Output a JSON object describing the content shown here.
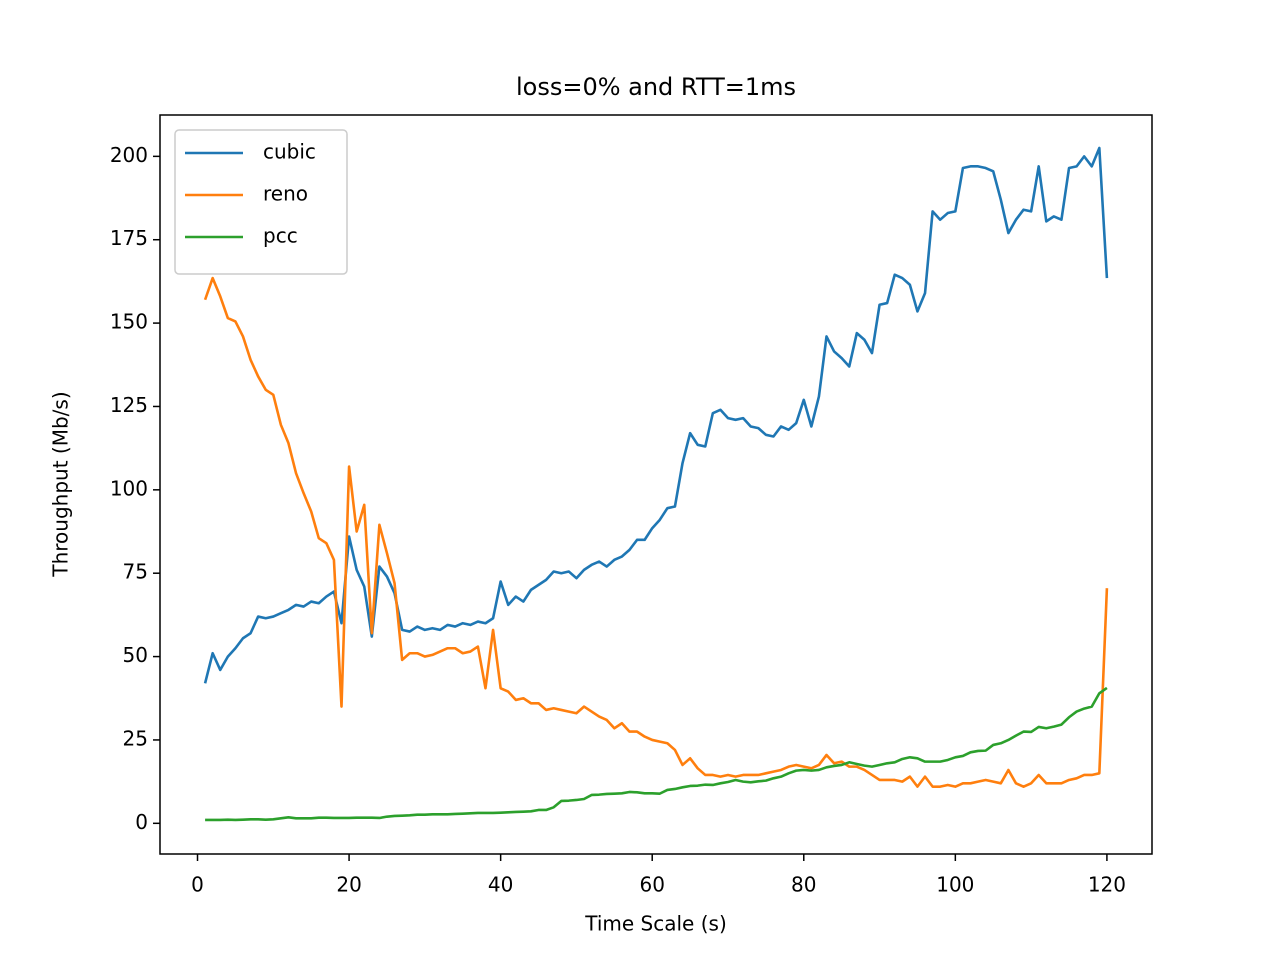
{
  "chart_data": {
    "type": "line",
    "title": "loss=0% and RTT=1ms",
    "xlabel": "Time Scale (s)",
    "ylabel": "Throughput (Mb/s)",
    "x": [
      1,
      2,
      3,
      4,
      5,
      6,
      7,
      8,
      9,
      10,
      11,
      12,
      13,
      14,
      15,
      16,
      17,
      18,
      19,
      20,
      21,
      22,
      23,
      24,
      25,
      26,
      27,
      28,
      29,
      30,
      31,
      32,
      33,
      34,
      35,
      36,
      37,
      38,
      39,
      40,
      41,
      42,
      43,
      44,
      45,
      46,
      47,
      48,
      49,
      50,
      51,
      52,
      53,
      54,
      55,
      56,
      57,
      58,
      59,
      60,
      61,
      62,
      63,
      64,
      65,
      66,
      67,
      68,
      69,
      70,
      71,
      72,
      73,
      74,
      75,
      76,
      77,
      78,
      79,
      80,
      81,
      82,
      83,
      84,
      85,
      86,
      87,
      88,
      89,
      90,
      91,
      92,
      93,
      94,
      95,
      96,
      97,
      98,
      99,
      100,
      101,
      102,
      103,
      104,
      105,
      106,
      107,
      108,
      109,
      110,
      111,
      112,
      113,
      114,
      115,
      116,
      117,
      118,
      119,
      120
    ],
    "series": [
      {
        "name": "cubic",
        "color": "#1f77b4",
        "values": [
          42,
          51,
          46,
          50,
          52.5,
          55.5,
          57,
          62,
          61.5,
          62,
          63,
          64,
          65.5,
          65,
          66.5,
          66,
          68,
          69.5,
          60,
          86,
          76,
          71,
          56,
          77,
          74,
          69,
          58,
          57.5,
          59,
          58,
          58.5,
          58,
          59.5,
          59,
          60,
          59.5,
          60.5,
          60,
          61.5,
          72.5,
          65.5,
          68,
          66.5,
          70,
          71.5,
          73,
          75.5,
          75,
          75.5,
          73.5,
          76,
          77.5,
          78.5,
          77,
          79,
          80,
          82,
          85,
          85,
          88.5,
          91,
          94.5,
          95,
          108,
          117,
          113.5,
          113,
          123,
          124,
          121.5,
          121,
          121.5,
          119,
          118.5,
          116.5,
          116,
          119,
          118,
          120,
          127,
          119,
          128,
          146,
          141.5,
          139.5,
          137,
          147,
          145,
          141,
          155.5,
          156,
          164.5,
          163.5,
          161.5,
          153.5,
          159,
          183.5,
          181,
          183,
          183.5,
          196.5,
          197,
          197,
          196.5,
          195.5,
          187,
          177,
          181,
          184,
          183.5,
          197,
          180.5,
          182,
          181,
          196.5,
          197,
          200,
          197,
          202.5,
          163.5
        ]
      },
      {
        "name": "reno",
        "color": "#ff7f0e",
        "values": [
          157,
          163.5,
          158,
          151.5,
          150.5,
          146,
          139,
          134,
          130,
          128.5,
          119.5,
          114,
          105,
          99,
          93.5,
          85.5,
          84,
          79,
          35,
          107,
          87.5,
          95.5,
          57,
          89.5,
          81,
          72,
          49,
          51,
          51,
          50,
          50.5,
          51.5,
          52.5,
          52.5,
          51,
          51.5,
          53,
          40.5,
          58,
          40.5,
          39.5,
          37,
          37.5,
          36,
          36,
          34,
          34.5,
          34,
          33.5,
          33,
          35,
          33.5,
          32,
          31,
          28.5,
          30,
          27.5,
          27.5,
          26,
          25,
          24.5,
          24,
          22,
          17.5,
          19.5,
          16.5,
          14.5,
          14.5,
          14,
          14.5,
          14,
          14.5,
          14.5,
          14.5,
          15,
          15.5,
          16,
          17,
          17.5,
          17,
          16.5,
          17.5,
          20.5,
          18,
          18.5,
          17,
          17,
          16,
          14.5,
          13,
          13,
          13,
          12.5,
          14,
          11,
          14,
          11,
          11,
          11.5,
          11,
          12,
          12,
          12.5,
          13,
          12.5,
          12,
          16,
          12,
          11,
          12,
          14.5,
          12,
          12,
          12,
          13,
          13.5,
          14.5,
          14.5,
          15,
          70.5
        ]
      },
      {
        "name": "pcc",
        "color": "#2ca02c",
        "values": [
          1,
          1,
          1,
          1.1,
          1,
          1.1,
          1.2,
          1.2,
          1.1,
          1.2,
          1.5,
          1.8,
          1.5,
          1.5,
          1.5,
          1.7,
          1.7,
          1.6,
          1.6,
          1.6,
          1.7,
          1.7,
          1.7,
          1.6,
          2,
          2.2,
          2.3,
          2.4,
          2.6,
          2.6,
          2.7,
          2.7,
          2.7,
          2.8,
          2.9,
          3,
          3.1,
          3.1,
          3.1,
          3.2,
          3.3,
          3.4,
          3.5,
          3.6,
          4,
          4,
          4.8,
          6.7,
          6.8,
          7,
          7.3,
          8.5,
          8.6,
          8.8,
          8.9,
          9,
          9.4,
          9.3,
          9,
          9,
          8.9,
          10,
          10.3,
          10.8,
          11.2,
          11.3,
          11.6,
          11.5,
          12,
          12.4,
          13,
          12.5,
          12.3,
          12.6,
          12.8,
          13.5,
          14,
          15,
          15.8,
          16,
          15.8,
          16,
          16.8,
          17.2,
          17.5,
          18.3,
          17.8,
          17.3,
          17,
          17.5,
          18,
          18.3,
          19.3,
          19.8,
          19.5,
          18.5,
          18.5,
          18.5,
          19,
          19.8,
          20.2,
          21.3,
          21.7,
          21.8,
          23.5,
          24,
          25,
          26.3,
          27.5,
          27.4,
          28.9,
          28.5,
          29,
          29.6,
          31.8,
          33.5,
          34.4,
          35,
          39,
          40.6
        ]
      }
    ],
    "xlim": [
      -4.95,
      125.95
    ],
    "ylim": [
      -9.2,
      212.4
    ],
    "xticks": [
      0,
      20,
      40,
      60,
      80,
      100,
      120
    ],
    "yticks": [
      0,
      25,
      50,
      75,
      100,
      125,
      150,
      175,
      200
    ],
    "legend": "upper left"
  }
}
